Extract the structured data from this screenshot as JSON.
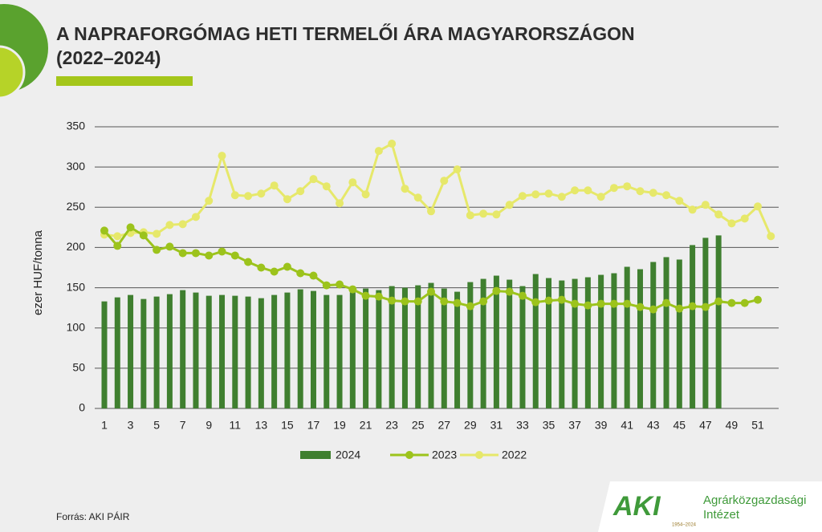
{
  "chart_data": {
    "type": "bar_line",
    "title": [
      "A NAPRAFORGÓMAG HETI TERMELŐI ÁRA MAGYARORSZÁGON",
      "(2022–2024)"
    ],
    "y_label": "ezer HUF/tonna",
    "categories": [
      "1",
      null,
      "3",
      null,
      "5",
      null,
      "7",
      null,
      "9",
      null,
      "11",
      null,
      "13",
      null,
      "15",
      null,
      "17",
      null,
      "19",
      null,
      "21",
      null,
      "23",
      null,
      "25",
      null,
      "27",
      null,
      "29",
      null,
      "31",
      null,
      "33",
      null,
      "35",
      null,
      "37",
      null,
      "39",
      null,
      "41",
      null,
      "43",
      null,
      "45",
      null,
      "47",
      null,
      "49",
      null,
      "51",
      null
    ],
    "series": [
      {
        "name": "2024",
        "kind": "bar",
        "color": "#3f7f2f",
        "values": [
          133,
          138,
          141,
          136,
          139,
          142,
          147,
          144,
          140,
          141,
          140,
          139,
          137,
          141,
          144,
          148,
          146,
          141,
          141,
          147,
          149,
          147,
          152,
          150,
          153,
          156,
          149,
          145,
          157,
          161,
          165,
          160,
          152,
          167,
          162,
          159,
          161,
          163,
          166,
          168,
          176,
          173,
          182,
          188,
          185,
          203,
          212,
          215,
          null,
          null,
          null,
          null
        ]
      },
      {
        "name": "2023",
        "kind": "line",
        "color": "#9cc31c",
        "values": [
          221,
          202,
          225,
          215,
          197,
          201,
          193,
          193,
          190,
          195,
          190,
          182,
          175,
          170,
          176,
          168,
          165,
          153,
          154,
          148,
          140,
          139,
          134,
          133,
          133,
          145,
          133,
          131,
          127,
          133,
          146,
          145,
          140,
          132,
          134,
          135,
          130,
          128,
          130,
          130,
          130,
          126,
          123,
          131,
          124,
          127,
          126,
          133,
          131,
          131,
          135,
          null
        ]
      },
      {
        "name": "2022",
        "kind": "line",
        "color": "#e6e86a",
        "values": [
          216,
          214,
          218,
          219,
          217,
          228,
          229,
          238,
          258,
          314,
          265,
          264,
          267,
          277,
          260,
          270,
          285,
          276,
          255,
          281,
          266,
          320,
          329,
          273,
          262,
          245,
          283,
          297,
          240,
          242,
          241,
          253,
          264,
          266,
          267,
          263,
          271,
          271,
          263,
          274,
          276,
          270,
          268,
          265,
          258,
          247,
          253,
          241,
          230,
          236,
          251,
          214
        ]
      }
    ],
    "ylim": [
      0,
      350
    ],
    "yticks": [
      0,
      50,
      100,
      150,
      200,
      250,
      300,
      350
    ],
    "grid": true
  },
  "source": "Forrás: AKI PÁIR",
  "logo": {
    "short": "AKI",
    "years": "1954–2024",
    "name_line1": "Agrárközgazdasági",
    "name_line2": "Intézet"
  }
}
